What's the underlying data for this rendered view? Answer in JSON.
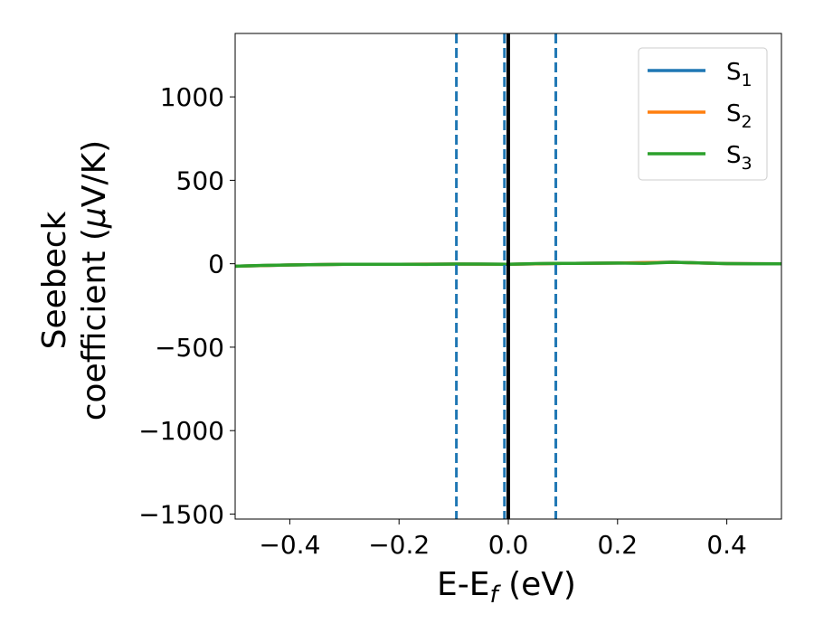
{
  "chart_data": {
    "type": "line",
    "xlabel": {
      "main": "E-E",
      "sub": "f",
      "tail": " (eV)"
    },
    "ylabel": {
      "line1": "Seebeck",
      "line2_pre": "coefficient  (",
      "mu": "μ",
      "line2_post": "V/K)"
    },
    "xlim": [
      -0.5,
      0.5
    ],
    "ylim": [
      -1530,
      1380
    ],
    "xticks": [
      -0.4,
      -0.2,
      0.0,
      0.2,
      0.4
    ],
    "xtick_labels": [
      "−0.4",
      "−0.2",
      "0.0",
      "0.2",
      "0.4"
    ],
    "yticks": [
      -1500,
      -1000,
      -500,
      0,
      500,
      1000
    ],
    "ytick_labels": [
      "−1500",
      "−1000",
      "−500",
      "0",
      "500",
      "1000"
    ],
    "series": [
      {
        "name": "S",
        "sub": "1",
        "color": "#1f77b4",
        "x": [
          -0.5,
          -0.4,
          -0.3,
          -0.2,
          -0.1,
          0.0,
          0.1,
          0.2,
          0.3,
          0.4,
          0.5
        ],
        "y": [
          -15,
          -7,
          -3,
          -3,
          -2,
          -3,
          2,
          4,
          9,
          1,
          0
        ]
      },
      {
        "name": "S",
        "sub": "2",
        "color": "#ff7f0e",
        "x": [
          -0.5,
          -0.4,
          -0.3,
          -0.2,
          -0.1,
          0.0,
          0.1,
          0.2,
          0.3,
          0.4,
          0.5
        ],
        "y": [
          -15,
          -7,
          -3,
          -3,
          -2,
          -3,
          2,
          4,
          9,
          1,
          0
        ]
      },
      {
        "name": "S",
        "sub": "3",
        "color": "#2ca02c",
        "x": [
          -0.5,
          -0.45,
          -0.4,
          -0.35,
          -0.3,
          -0.25,
          -0.2,
          -0.15,
          -0.1,
          -0.05,
          0.0,
          0.05,
          0.1,
          0.15,
          0.2,
          0.25,
          0.3,
          0.35,
          0.4,
          0.45,
          0.5
        ],
        "y": [
          -15,
          -10,
          -7,
          -5,
          -3,
          -3,
          -3,
          -4,
          -2,
          -2,
          -3,
          1,
          2,
          3,
          4,
          2,
          9,
          5,
          1,
          0,
          0
        ]
      }
    ],
    "vlines": [
      {
        "x": -0.095,
        "color": "#1f77b4",
        "style": "dashed"
      },
      {
        "x": -0.007,
        "color": "#1f77b4",
        "style": "dashed"
      },
      {
        "x": 0.087,
        "color": "#1f77b4",
        "style": "dashed"
      },
      {
        "x": 0.0,
        "color": "#000000",
        "style": "solid"
      }
    ],
    "legend_position": "top-right",
    "grid": false
  }
}
